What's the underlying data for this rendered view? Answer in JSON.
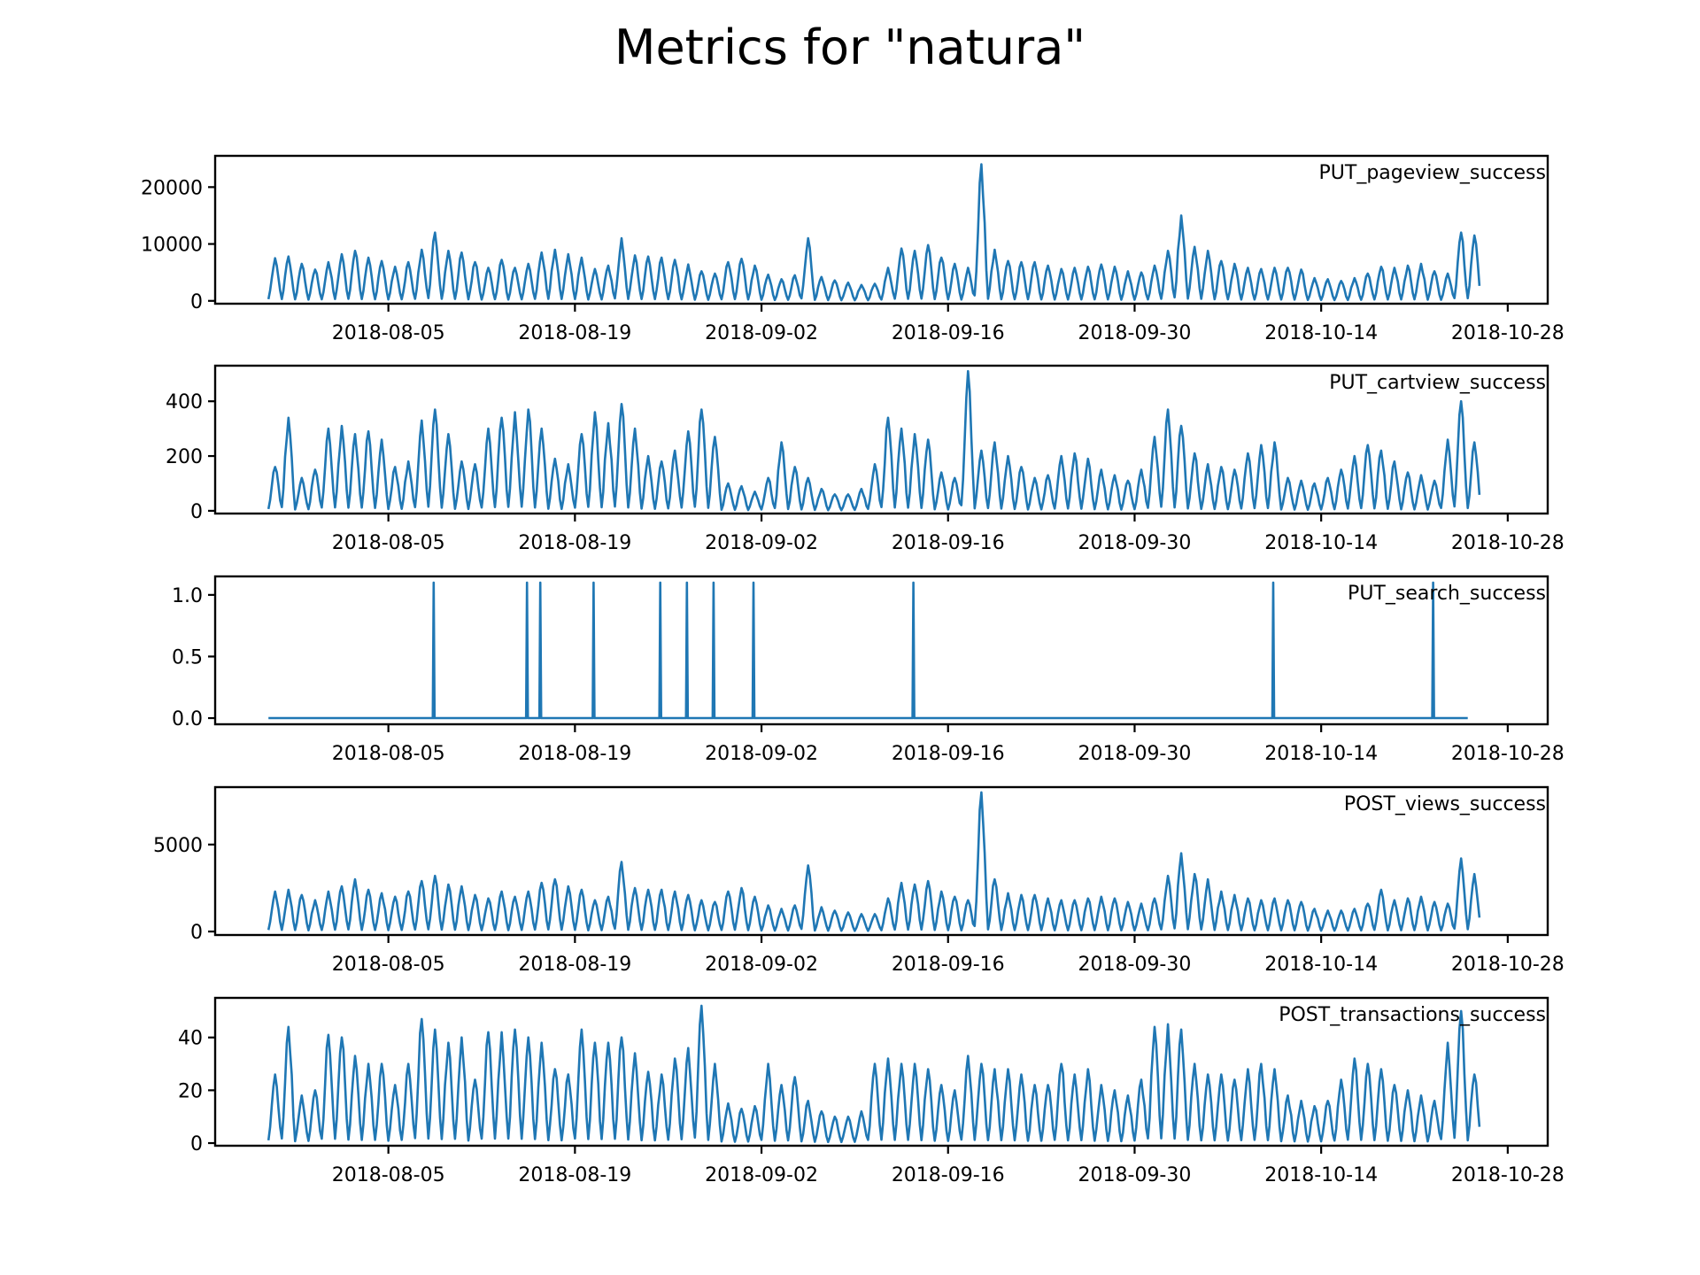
{
  "title": "Metrics for \"natura\"",
  "colors": {
    "line": "#1f77b4"
  },
  "chart_data": [
    {
      "type": "line",
      "name": "PUT_pageview_success",
      "xlim": [
        "2018-07-23",
        "2018-10-31"
      ],
      "ylim": [
        -500,
        25500
      ],
      "yticks": [
        0,
        10000,
        20000
      ],
      "ytick_labels": [
        "0",
        "10000",
        "20000"
      ],
      "xticks": [
        "2018-08-05",
        "2018-08-19",
        "2018-09-02",
        "2018-09-16",
        "2018-09-30",
        "2018-10-14",
        "2018-10-28"
      ],
      "x": [
        "2018-07-27",
        "2018-07-28",
        "2018-07-29",
        "2018-07-30",
        "2018-07-31",
        "2018-08-01",
        "2018-08-02",
        "2018-08-03",
        "2018-08-04",
        "2018-08-05",
        "2018-08-06",
        "2018-08-07",
        "2018-08-08",
        "2018-08-09",
        "2018-08-10",
        "2018-08-11",
        "2018-08-12",
        "2018-08-13",
        "2018-08-14",
        "2018-08-15",
        "2018-08-16",
        "2018-08-17",
        "2018-08-18",
        "2018-08-19",
        "2018-08-20",
        "2018-08-21",
        "2018-08-22",
        "2018-08-23",
        "2018-08-24",
        "2018-08-25",
        "2018-08-26",
        "2018-08-27",
        "2018-08-28",
        "2018-08-29",
        "2018-08-30",
        "2018-08-31",
        "2018-09-01",
        "2018-09-02",
        "2018-09-03",
        "2018-09-04",
        "2018-09-05",
        "2018-09-06",
        "2018-09-07",
        "2018-09-08",
        "2018-09-09",
        "2018-09-10",
        "2018-09-11",
        "2018-09-12",
        "2018-09-13",
        "2018-09-14",
        "2018-09-15",
        "2018-09-16",
        "2018-09-17",
        "2018-09-18",
        "2018-09-19",
        "2018-09-20",
        "2018-09-21",
        "2018-09-22",
        "2018-09-23",
        "2018-09-24",
        "2018-09-25",
        "2018-09-26",
        "2018-09-27",
        "2018-09-28",
        "2018-09-29",
        "2018-09-30",
        "2018-10-01",
        "2018-10-02",
        "2018-10-03",
        "2018-10-04",
        "2018-10-05",
        "2018-10-06",
        "2018-10-07",
        "2018-10-08",
        "2018-10-09",
        "2018-10-10",
        "2018-10-11",
        "2018-10-12",
        "2018-10-13",
        "2018-10-14",
        "2018-10-15",
        "2018-10-16",
        "2018-10-17",
        "2018-10-18",
        "2018-10-19",
        "2018-10-20",
        "2018-10-21",
        "2018-10-22",
        "2018-10-23",
        "2018-10-24",
        "2018-10-25"
      ],
      "y": [
        7500,
        7800,
        6500,
        5500,
        6800,
        8200,
        8800,
        7600,
        7000,
        6000,
        6800,
        9000,
        12000,
        8800,
        8500,
        6800,
        5800,
        7200,
        5800,
        6500,
        8500,
        9000,
        8200,
        7600,
        5600,
        6200,
        11000,
        8000,
        7800,
        7600,
        7200,
        6400,
        5200,
        4800,
        6800,
        7400,
        6200,
        4600,
        3800,
        4500,
        11000,
        4200,
        3600,
        3200,
        2800,
        3000,
        5800,
        9200,
        8800,
        9800,
        7600,
        6500,
        5800,
        24000,
        9000,
        7000,
        6800,
        6800,
        6200,
        5600,
        5800,
        6000,
        6400,
        6000,
        5200,
        5000,
        6200,
        8800,
        15000,
        9500,
        8800,
        7000,
        6500,
        5800,
        5600,
        5800,
        5800,
        5500,
        4000,
        3800,
        3500,
        4000,
        4800,
        6000,
        5800,
        6200,
        6500,
        5200,
        4800,
        12000,
        11500
      ]
    },
    {
      "type": "line",
      "name": "PUT_cartview_success",
      "xlim": [
        "2018-07-23",
        "2018-10-31"
      ],
      "ylim": [
        -10,
        530
      ],
      "yticks": [
        0,
        200,
        400
      ],
      "ytick_labels": [
        "0",
        "200",
        "400"
      ],
      "xticks": [
        "2018-08-05",
        "2018-08-19",
        "2018-09-02",
        "2018-09-16",
        "2018-09-30",
        "2018-10-14",
        "2018-10-28"
      ],
      "x": [
        "2018-07-27",
        "2018-07-28",
        "2018-07-29",
        "2018-07-30",
        "2018-07-31",
        "2018-08-01",
        "2018-08-02",
        "2018-08-03",
        "2018-08-04",
        "2018-08-05",
        "2018-08-06",
        "2018-08-07",
        "2018-08-08",
        "2018-08-09",
        "2018-08-10",
        "2018-08-11",
        "2018-08-12",
        "2018-08-13",
        "2018-08-14",
        "2018-08-15",
        "2018-08-16",
        "2018-08-17",
        "2018-08-18",
        "2018-08-19",
        "2018-08-20",
        "2018-08-21",
        "2018-08-22",
        "2018-08-23",
        "2018-08-24",
        "2018-08-25",
        "2018-08-26",
        "2018-08-27",
        "2018-08-28",
        "2018-08-29",
        "2018-08-30",
        "2018-08-31",
        "2018-09-01",
        "2018-09-02",
        "2018-09-03",
        "2018-09-04",
        "2018-09-05",
        "2018-09-06",
        "2018-09-07",
        "2018-09-08",
        "2018-09-09",
        "2018-09-10",
        "2018-09-11",
        "2018-09-12",
        "2018-09-13",
        "2018-09-14",
        "2018-09-15",
        "2018-09-16",
        "2018-09-17",
        "2018-09-18",
        "2018-09-19",
        "2018-09-20",
        "2018-09-21",
        "2018-09-22",
        "2018-09-23",
        "2018-09-24",
        "2018-09-25",
        "2018-09-26",
        "2018-09-27",
        "2018-09-28",
        "2018-09-29",
        "2018-09-30",
        "2018-10-01",
        "2018-10-02",
        "2018-10-03",
        "2018-10-04",
        "2018-10-05",
        "2018-10-06",
        "2018-10-07",
        "2018-10-08",
        "2018-10-09",
        "2018-10-10",
        "2018-10-11",
        "2018-10-12",
        "2018-10-13",
        "2018-10-14",
        "2018-10-15",
        "2018-10-16",
        "2018-10-17",
        "2018-10-18",
        "2018-10-19",
        "2018-10-20",
        "2018-10-21",
        "2018-10-22",
        "2018-10-23",
        "2018-10-24",
        "2018-10-25"
      ],
      "y": [
        160,
        340,
        120,
        150,
        300,
        310,
        280,
        290,
        260,
        160,
        180,
        330,
        370,
        280,
        180,
        170,
        300,
        340,
        360,
        370,
        300,
        190,
        170,
        280,
        360,
        320,
        390,
        300,
        200,
        180,
        220,
        290,
        370,
        270,
        100,
        90,
        70,
        120,
        250,
        160,
        120,
        80,
        60,
        60,
        80,
        170,
        340,
        300,
        280,
        260,
        140,
        120,
        510,
        220,
        250,
        200,
        160,
        120,
        130,
        200,
        210,
        190,
        150,
        130,
        110,
        150,
        270,
        370,
        310,
        210,
        170,
        160,
        150,
        210,
        240,
        250,
        120,
        110,
        100,
        120,
        150,
        200,
        240,
        220,
        180,
        140,
        130,
        110,
        260,
        400,
        250
      ]
    },
    {
      "type": "line",
      "name": "PUT_search_success",
      "xlim": [
        "2018-07-23",
        "2018-10-31"
      ],
      "ylim": [
        -0.05,
        1.15
      ],
      "yticks": [
        0.0,
        0.5,
        1.0
      ],
      "ytick_labels": [
        "0.0",
        "0.5",
        "1.0"
      ],
      "xticks": [
        "2018-08-05",
        "2018-08-19",
        "2018-09-02",
        "2018-09-16",
        "2018-09-30",
        "2018-10-14",
        "2018-10-28"
      ],
      "baseline": 0,
      "start": "2018-07-27",
      "end": "2018-10-25",
      "spikes": [
        "2018-08-08",
        "2018-08-08",
        "2018-08-15",
        "2018-08-16",
        "2018-08-20",
        "2018-08-25",
        "2018-08-27",
        "2018-08-29",
        "2018-09-01",
        "2018-09-13",
        "2018-10-10",
        "2018-10-22"
      ],
      "spike_value": 1.1
    },
    {
      "type": "line",
      "name": "POST_views_success",
      "xlim": [
        "2018-07-23",
        "2018-10-31"
      ],
      "ylim": [
        -200,
        8300
      ],
      "yticks": [
        0,
        5000
      ],
      "ytick_labels": [
        "0",
        "5000"
      ],
      "xticks": [
        "2018-08-05",
        "2018-08-19",
        "2018-09-02",
        "2018-09-16",
        "2018-09-30",
        "2018-10-14",
        "2018-10-28"
      ],
      "x": [
        "2018-07-27",
        "2018-07-28",
        "2018-07-29",
        "2018-07-30",
        "2018-07-31",
        "2018-08-01",
        "2018-08-02",
        "2018-08-03",
        "2018-08-04",
        "2018-08-05",
        "2018-08-06",
        "2018-08-07",
        "2018-08-08",
        "2018-08-09",
        "2018-08-10",
        "2018-08-11",
        "2018-08-12",
        "2018-08-13",
        "2018-08-14",
        "2018-08-15",
        "2018-08-16",
        "2018-08-17",
        "2018-08-18",
        "2018-08-19",
        "2018-08-20",
        "2018-08-21",
        "2018-08-22",
        "2018-08-23",
        "2018-08-24",
        "2018-08-25",
        "2018-08-26",
        "2018-08-27",
        "2018-08-28",
        "2018-08-29",
        "2018-08-30",
        "2018-08-31",
        "2018-09-01",
        "2018-09-02",
        "2018-09-03",
        "2018-09-04",
        "2018-09-05",
        "2018-09-06",
        "2018-09-07",
        "2018-09-08",
        "2018-09-09",
        "2018-09-10",
        "2018-09-11",
        "2018-09-12",
        "2018-09-13",
        "2018-09-14",
        "2018-09-15",
        "2018-09-16",
        "2018-09-17",
        "2018-09-18",
        "2018-09-19",
        "2018-09-20",
        "2018-09-21",
        "2018-09-22",
        "2018-09-23",
        "2018-09-24",
        "2018-09-25",
        "2018-09-26",
        "2018-09-27",
        "2018-09-28",
        "2018-09-29",
        "2018-09-30",
        "2018-10-01",
        "2018-10-02",
        "2018-10-03",
        "2018-10-04",
        "2018-10-05",
        "2018-10-06",
        "2018-10-07",
        "2018-10-08",
        "2018-10-09",
        "2018-10-10",
        "2018-10-11",
        "2018-10-12",
        "2018-10-13",
        "2018-10-14",
        "2018-10-15",
        "2018-10-16",
        "2018-10-17",
        "2018-10-18",
        "2018-10-19",
        "2018-10-20",
        "2018-10-21",
        "2018-10-22",
        "2018-10-23",
        "2018-10-24",
        "2018-10-25"
      ],
      "y": [
        2300,
        2400,
        2100,
        1800,
        2300,
        2600,
        3000,
        2400,
        2200,
        2000,
        2300,
        2900,
        3200,
        2700,
        2600,
        2100,
        1900,
        2300,
        2000,
        2300,
        2800,
        3000,
        2600,
        2400,
        1800,
        2000,
        4000,
        2500,
        2400,
        2400,
        2300,
        2100,
        1800,
        1700,
        2300,
        2500,
        2000,
        1500,
        1300,
        1500,
        3800,
        1400,
        1200,
        1100,
        1000,
        1000,
        1900,
        2800,
        2700,
        2900,
        2300,
        2000,
        1800,
        8000,
        3000,
        2200,
        2100,
        2100,
        1900,
        1800,
        1800,
        1900,
        2000,
        1900,
        1700,
        1600,
        1900,
        3200,
        4500,
        3300,
        3000,
        2300,
        2100,
        1900,
        1800,
        1900,
        1800,
        1700,
        1300,
        1200,
        1200,
        1300,
        1600,
        2400,
        1800,
        1900,
        2000,
        1700,
        1600,
        4200,
        3300
      ]
    },
    {
      "type": "line",
      "name": "POST_transactions_success",
      "xlim": [
        "2018-07-23",
        "2018-10-31"
      ],
      "ylim": [
        -1,
        55
      ],
      "yticks": [
        0,
        20,
        40
      ],
      "ytick_labels": [
        "0",
        "20",
        "40"
      ],
      "xticks": [
        "2018-08-05",
        "2018-08-19",
        "2018-09-02",
        "2018-09-16",
        "2018-09-30",
        "2018-10-14",
        "2018-10-28"
      ],
      "x": [
        "2018-07-27",
        "2018-07-28",
        "2018-07-29",
        "2018-07-30",
        "2018-07-31",
        "2018-08-01",
        "2018-08-02",
        "2018-08-03",
        "2018-08-04",
        "2018-08-05",
        "2018-08-06",
        "2018-08-07",
        "2018-08-08",
        "2018-08-09",
        "2018-08-10",
        "2018-08-11",
        "2018-08-12",
        "2018-08-13",
        "2018-08-14",
        "2018-08-15",
        "2018-08-16",
        "2018-08-17",
        "2018-08-18",
        "2018-08-19",
        "2018-08-20",
        "2018-08-21",
        "2018-08-22",
        "2018-08-23",
        "2018-08-24",
        "2018-08-25",
        "2018-08-26",
        "2018-08-27",
        "2018-08-28",
        "2018-08-29",
        "2018-08-30",
        "2018-08-31",
        "2018-09-01",
        "2018-09-02",
        "2018-09-03",
        "2018-09-04",
        "2018-09-05",
        "2018-09-06",
        "2018-09-07",
        "2018-09-08",
        "2018-09-09",
        "2018-09-10",
        "2018-09-11",
        "2018-09-12",
        "2018-09-13",
        "2018-09-14",
        "2018-09-15",
        "2018-09-16",
        "2018-09-17",
        "2018-09-18",
        "2018-09-19",
        "2018-09-20",
        "2018-09-21",
        "2018-09-22",
        "2018-09-23",
        "2018-09-24",
        "2018-09-25",
        "2018-09-26",
        "2018-09-27",
        "2018-09-28",
        "2018-09-29",
        "2018-09-30",
        "2018-10-01",
        "2018-10-02",
        "2018-10-03",
        "2018-10-04",
        "2018-10-05",
        "2018-10-06",
        "2018-10-07",
        "2018-10-08",
        "2018-10-09",
        "2018-10-10",
        "2018-10-11",
        "2018-10-12",
        "2018-10-13",
        "2018-10-14",
        "2018-10-15",
        "2018-10-16",
        "2018-10-17",
        "2018-10-18",
        "2018-10-19",
        "2018-10-20",
        "2018-10-21",
        "2018-10-22",
        "2018-10-23",
        "2018-10-24",
        "2018-10-25"
      ],
      "y": [
        26,
        44,
        18,
        20,
        41,
        40,
        33,
        30,
        30,
        22,
        30,
        47,
        43,
        38,
        40,
        24,
        42,
        42,
        43,
        40,
        38,
        28,
        26,
        43,
        38,
        38,
        40,
        34,
        27,
        26,
        32,
        36,
        52,
        30,
        15,
        13,
        14,
        30,
        22,
        25,
        16,
        12,
        10,
        10,
        12,
        30,
        32,
        30,
        30,
        28,
        22,
        20,
        33,
        30,
        28,
        28,
        26,
        22,
        22,
        30,
        26,
        28,
        22,
        20,
        18,
        24,
        44,
        45,
        43,
        30,
        26,
        26,
        24,
        28,
        30,
        28,
        18,
        16,
        14,
        16,
        24,
        32,
        30,
        28,
        22,
        20,
        18,
        16,
        38,
        50,
        26
      ]
    }
  ]
}
